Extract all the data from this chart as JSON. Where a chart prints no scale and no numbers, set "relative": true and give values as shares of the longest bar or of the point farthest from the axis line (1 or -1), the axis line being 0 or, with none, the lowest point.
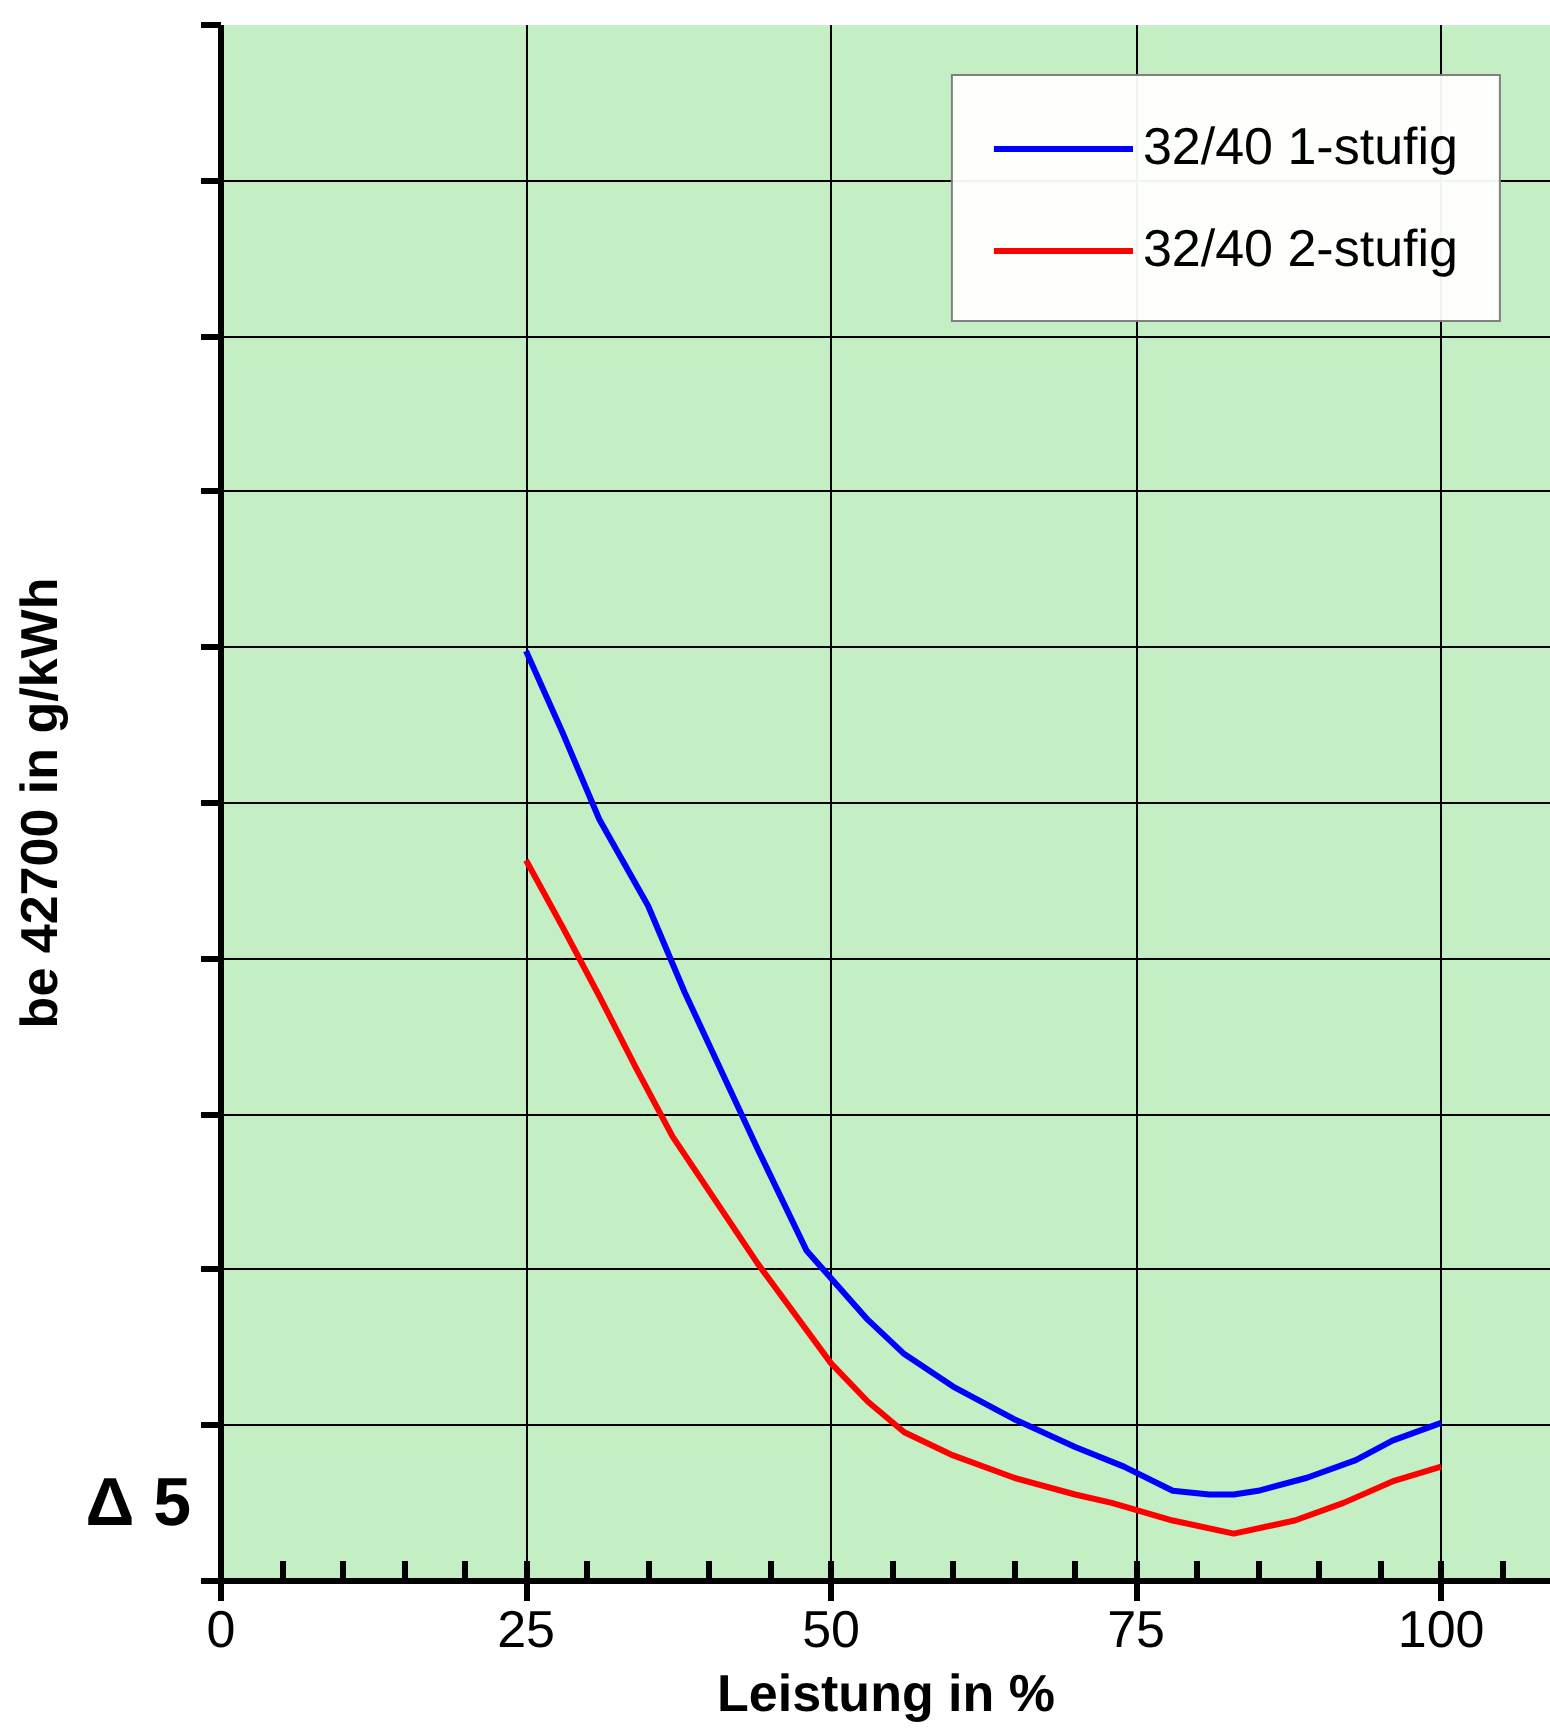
{
  "chart_data": {
    "type": "line",
    "relative": true,
    "xlabel": "Leistung in %",
    "ylabel": "be 42700 in g/kWh",
    "annotations": [
      "Δ 5"
    ],
    "xlim": [
      0,
      109
    ],
    "xticks": [
      0,
      25,
      50,
      75,
      100
    ],
    "grid": true,
    "legend": "top right",
    "series": [
      {
        "name": "32/40 1-stufig",
        "color": "#0000ff",
        "x": [
          25,
          28,
          31,
          35,
          38,
          44,
          48,
          53,
          56,
          60,
          65,
          70,
          74,
          78,
          81,
          83,
          85,
          89,
          93,
          96,
          100
        ],
        "values": [
          1,
          0.912,
          0.819,
          0.726,
          0.633,
          0.464,
          0.355,
          0.281,
          0.244,
          0.209,
          0.174,
          0.144,
          0.123,
          0.097,
          0.093,
          0.093,
          0.097,
          0.111,
          0.13,
          0.151,
          0.17
        ]
      },
      {
        "name": "32/40 2-stufig",
        "color": "#ff0000",
        "x": [
          25,
          28,
          31,
          34,
          37,
          44,
          50,
          53,
          56,
          60,
          65,
          70,
          73,
          78,
          83,
          88,
          92,
          96,
          100
        ],
        "values": [
          0.775,
          0.703,
          0.629,
          0.552,
          0.478,
          0.341,
          0.234,
          0.193,
          0.16,
          0.135,
          0.111,
          0.093,
          0.084,
          0.065,
          0.051,
          0.065,
          0.084,
          0.107,
          0.123
        ]
      }
    ]
  }
}
